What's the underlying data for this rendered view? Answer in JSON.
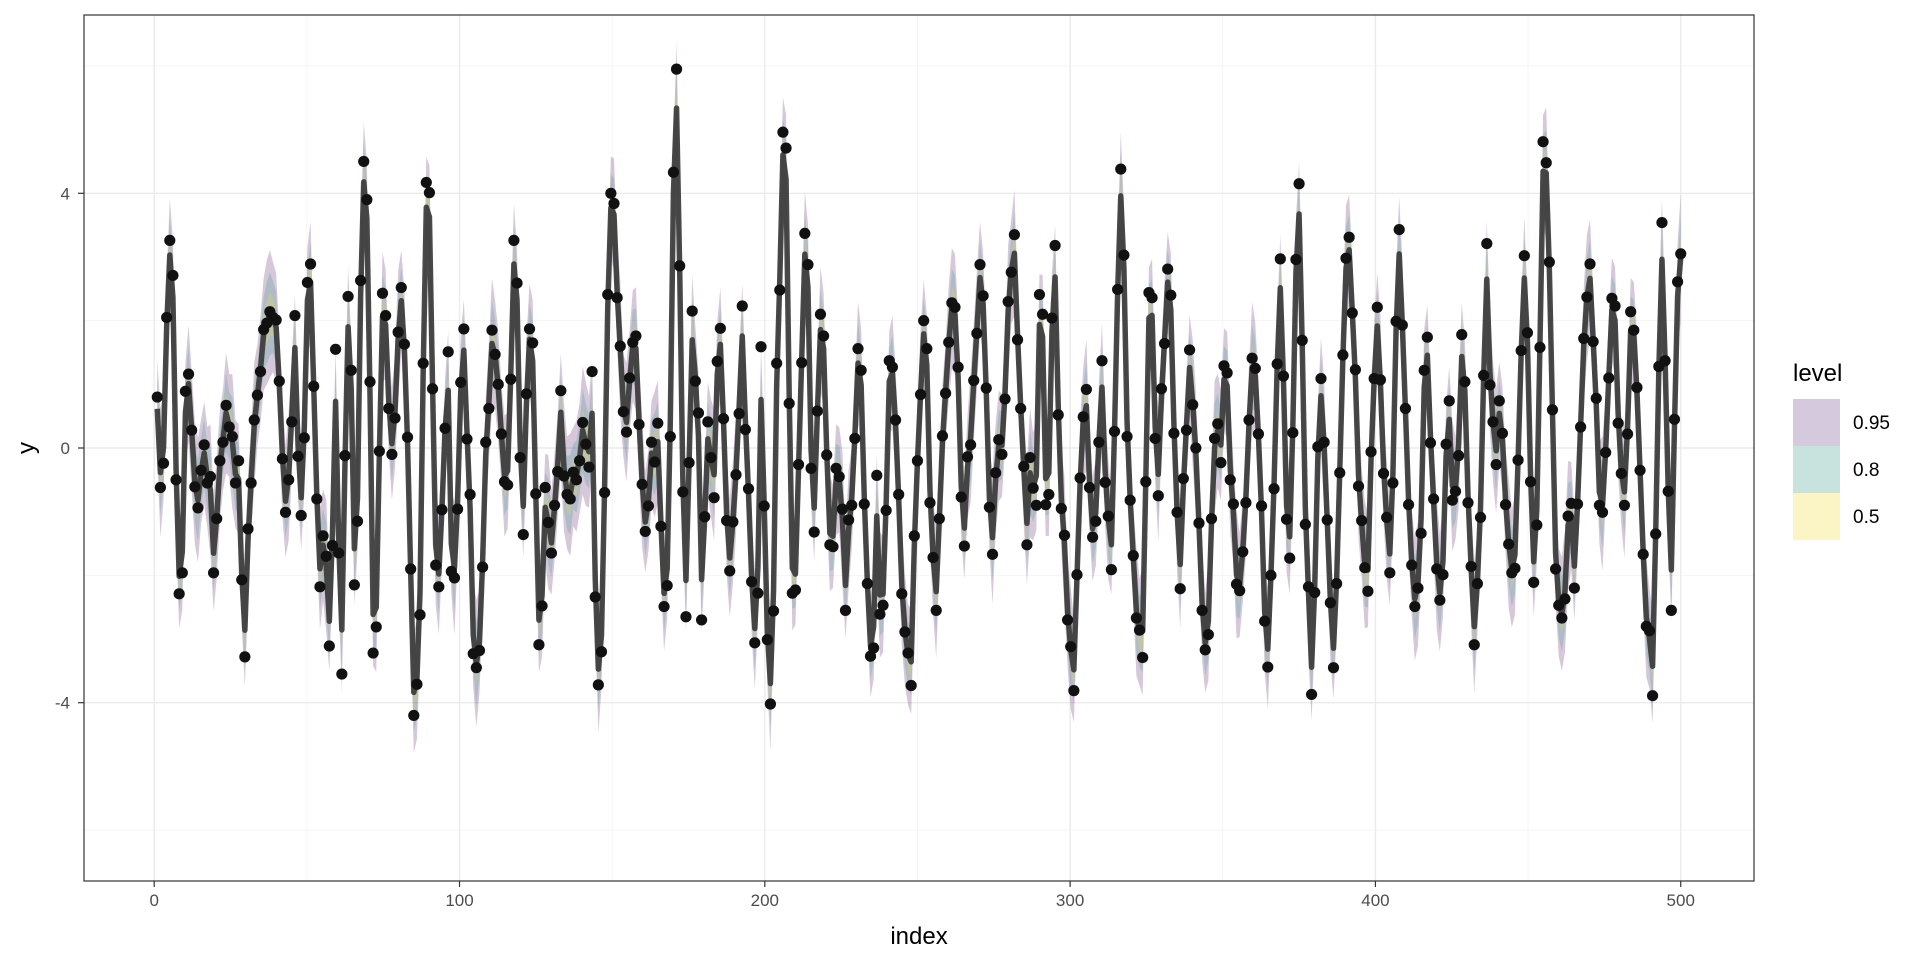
{
  "chart_data": {
    "type": "line",
    "xlabel": "index",
    "ylabel": "y",
    "xlim": [
      -23,
      524
    ],
    "ylim": [
      -6.8,
      6.8
    ],
    "x_ticks": [
      0,
      100,
      200,
      300,
      400,
      500
    ],
    "y_ticks": [
      -4,
      0,
      4
    ],
    "grid": true,
    "legend": {
      "title": "level",
      "placement": "right",
      "entries": [
        {
          "label": "0.95",
          "color": "#d5c9dd"
        },
        {
          "label": "0.8",
          "color": "#c8e3dd"
        },
        {
          "label": "0.5",
          "color": "#fbf4c4"
        }
      ]
    },
    "band_colors": {
      "0.95": "#440154",
      "0.8": "#21908c",
      "0.5": "#fde725"
    },
    "line_color": "#3a3a3a",
    "point_color": "#111111",
    "x_start": 1,
    "x_end": 500,
    "observations": [
      0.8,
      -0.62,
      -0.24,
      2.05,
      3.26,
      2.71,
      -0.5,
      -2.29,
      -1.96,
      0.89,
      1.16,
      0.28,
      -0.61,
      -0.94,
      -0.35,
      0.05,
      -0.55,
      -0.45,
      -1.96,
      -1.11,
      -0.2,
      0.09,
      0.67,
      0.33,
      0.18,
      -0.55,
      -0.2,
      -2.07,
      -3.28,
      -1.27,
      -0.55,
      0.44,
      0.83,
      1.2,
      1.86,
      1.96,
      2.14,
      2.05,
      2.01,
      1.05,
      -0.17,
      -1.01,
      -0.5,
      0.41,
      2.08,
      -0.13,
      -1.06,
      0.16,
      2.6,
      2.89,
      0.97,
      -0.8,
      -2.18,
      -1.38,
      -1.7,
      -3.11,
      -1.53,
      1.55,
      -1.65,
      -3.55,
      -0.12,
      2.38,
      1.22,
      -2.15,
      -1.15,
      2.63,
      4.5,
      3.9,
      1.04,
      -3.22,
      -2.81,
      -0.05,
      2.43,
      2.08,
      0.62,
      -0.1,
      0.47,
      1.82,
      2.52,
      1.63,
      0.17,
      -1.9,
      -4.2,
      -3.71,
      -2.62,
      1.33,
      4.17,
      4.01,
      0.93,
      -1.84,
      -2.18,
      -0.97,
      0.31,
      1.51,
      -1.94,
      -2.04,
      -0.96,
      1.03,
      1.87,
      0.14,
      -0.73,
      -3.23,
      -3.45,
      -3.18,
      -1.87,
      0.09,
      0.62,
      1.85,
      1.47,
      1.0,
      0.22,
      -0.53,
      -0.58,
      1.08,
      3.26,
      2.59,
      -0.15,
      -1.36,
      0.85,
      1.87,
      1.65,
      -0.72,
      -3.09,
      -2.48,
      -0.62,
      -1.17,
      -1.65,
      -0.9,
      -0.37,
      0.9,
      -0.44,
      -0.73,
      -0.8,
      -0.38,
      -0.5,
      -0.2,
      0.4,
      0.06,
      -0.3,
      1.2,
      -2.34,
      -3.72,
      -3.2,
      -0.7,
      2.41,
      4.0,
      3.84,
      2.36,
      1.6,
      0.57,
      0.25,
      1.1,
      1.66,
      1.76,
      0.37,
      -0.57,
      -1.31,
      -0.91,
      0.09,
      -0.22,
      0.39,
      -1.23,
      -2.49,
      -2.16,
      0.18,
      4.33,
      5.95,
      2.86,
      -0.69,
      -2.65,
      -0.23,
      2.15,
      1.05,
      0.55,
      -2.7,
      -1.08,
      0.41,
      -0.15,
      -0.78,
      1.36,
      1.88,
      0.46,
      -1.14,
      -1.93,
      -1.16,
      -0.42,
      0.54,
      2.23,
      0.29,
      -0.64,
      -2.1,
      -3.06,
      -2.28,
      1.59,
      -0.91,
      -3.01,
      -4.02,
      -2.56,
      1.33,
      2.48,
      4.96,
      4.71,
      0.7,
      -2.28,
      -2.23,
      -0.26,
      1.34,
      3.37,
      2.88,
      -0.32,
      -1.32,
      0.58,
      2.1,
      1.76,
      -0.11,
      -1.52,
      -1.55,
      -0.32,
      -0.45,
      -0.96,
      -2.55,
      -1.13,
      -0.9,
      0.15,
      1.56,
      1.22,
      -0.88,
      -2.13,
      -3.27,
      -3.14,
      -0.43,
      -2.61,
      -2.47,
      -0.98,
      1.37,
      1.27,
      0.44,
      -0.73,
      -2.29,
      -2.89,
      -3.22,
      -3.73,
      -1.38,
      -0.2,
      0.84,
      2.0,
      1.56,
      -0.86,
      -1.72,
      -2.55,
      -1.11,
      0.19,
      0.86,
      1.66,
      2.28,
      2.21,
      1.27,
      -0.77,
      -1.54,
      -0.14,
      0.05,
      1.06,
      1.8,
      2.88,
      2.39,
      0.94,
      -0.93,
      -1.67,
      -0.39,
      0.13,
      -0.1,
      0.77,
      2.3,
      2.76,
      3.35,
      1.7,
      0.62,
      -0.29,
      -1.52,
      -0.15,
      -0.63,
      -0.9,
      2.41,
      2.1,
      -0.89,
      -0.73,
      2.04,
      3.18,
      0.52,
      -0.95,
      -1.37,
      -2.7,
      -3.12,
      -3.81,
      -1.99,
      -0.47,
      0.49,
      0.92,
      -0.62,
      -1.4,
      -1.15,
      0.09,
      1.37,
      -0.54,
      -1.07,
      -1.91,
      0.26,
      2.49,
      4.38,
      3.03,
      0.18,
      -0.82,
      -1.69,
      -2.67,
      -2.86,
      -3.29,
      -0.53,
      2.44,
      2.36,
      0.15,
      -0.75,
      0.93,
      1.64,
      2.81,
      2.4,
      0.23,
      -1.01,
      -2.21,
      -0.48,
      0.28,
      1.54,
      0.68,
      0.0,
      -1.18,
      -2.55,
      -3.17,
      -2.93,
      -1.11,
      0.15,
      0.38,
      -0.23,
      1.29,
      1.18,
      -0.5,
      -0.88,
      -2.14,
      -2.24,
      -1.63,
      -0.86,
      0.44,
      1.41,
      1.25,
      0.22,
      -0.91,
      -2.72,
      -3.44,
      -2.0,
      -0.64,
      1.32,
      2.97,
      1.13,
      -1.12,
      -1.73,
      0.24,
      2.96,
      4.15,
      1.69,
      -1.2,
      -2.18,
      -3.87,
      -2.27,
      0.02,
      1.09,
      0.09,
      -1.13,
      -2.43,
      -3.45,
      -2.13,
      -0.39,
      1.46,
      2.98,
      3.31,
      2.12,
      1.23,
      -0.6,
      -1.14,
      -1.88,
      -2.25,
      -0.06,
      1.09,
      2.21,
      1.07,
      -0.4,
      -1.09,
      -1.96,
      -0.55,
      1.99,
      3.43,
      1.93,
      0.62,
      -0.89,
      -1.84,
      -2.49,
      -2.2,
      -1.34,
      1.22,
      1.74,
      0.08,
      -0.8,
      -1.9,
      -2.39,
      -1.99,
      0.06,
      0.74,
      -0.82,
      -0.68,
      -0.12,
      1.78,
      1.04,
      -0.86,
      -1.86,
      -3.09,
      -2.13,
      -1.09,
      1.14,
      3.21,
      0.99,
      0.41,
      -0.26,
      0.74,
      0.23,
      -0.89,
      -1.51,
      -1.96,
      -1.89,
      -0.19,
      1.53,
      3.02,
      1.81,
      -0.53,
      -2.11,
      -1.21,
      1.58,
      4.81,
      4.48,
      2.92,
      0.6,
      -1.9,
      -2.47,
      -2.67,
      -2.37,
      -1.07,
      -0.87,
      -2.2,
      -0.88,
      0.33,
      1.72,
      2.37,
      2.89,
      1.67,
      0.78,
      -0.9,
      -1.01,
      -0.07,
      1.1,
      2.35,
      2.23,
      0.39,
      -0.4,
      -0.9,
      0.22,
      2.14,
      1.85,
      0.95,
      -0.35,
      -1.67,
      -2.8,
      -2.87,
      -3.89,
      -1.35,
      1.28,
      3.54,
      1.37,
      -0.68,
      -2.55,
      0.45,
      2.61,
      3.05
    ]
  }
}
